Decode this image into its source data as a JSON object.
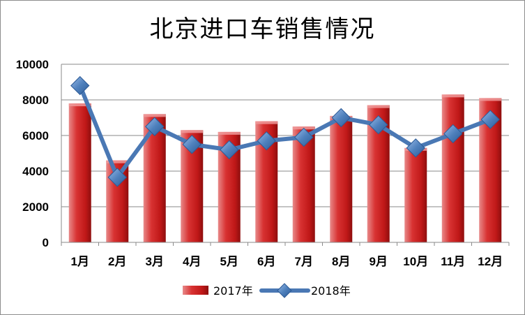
{
  "chart_data": {
    "type": "bar",
    "title": "北京进口车销售情况",
    "xlabel": "",
    "ylabel": "",
    "categories": [
      "1月",
      "2月",
      "3月",
      "4月",
      "5月",
      "6月",
      "7月",
      "8月",
      "9月",
      "10月",
      "11月",
      "12月"
    ],
    "ylim": [
      0,
      10000
    ],
    "yticks": [
      "0",
      "2000",
      "4000",
      "6000",
      "8000",
      "10000"
    ],
    "grid": true,
    "legend": "bottom",
    "series": [
      {
        "name": "2017年",
        "type": "bar",
        "color": "#d42020",
        "values": [
          7800,
          4600,
          7200,
          6300,
          6200,
          6800,
          6500,
          7100,
          7700,
          5300,
          8300,
          8100
        ]
      },
      {
        "name": "2018年",
        "type": "line",
        "color": "#4f81bd",
        "values": [
          8800,
          3650,
          6500,
          5500,
          5200,
          5700,
          5900,
          7000,
          6600,
          5300,
          6100,
          6900
        ]
      }
    ]
  }
}
